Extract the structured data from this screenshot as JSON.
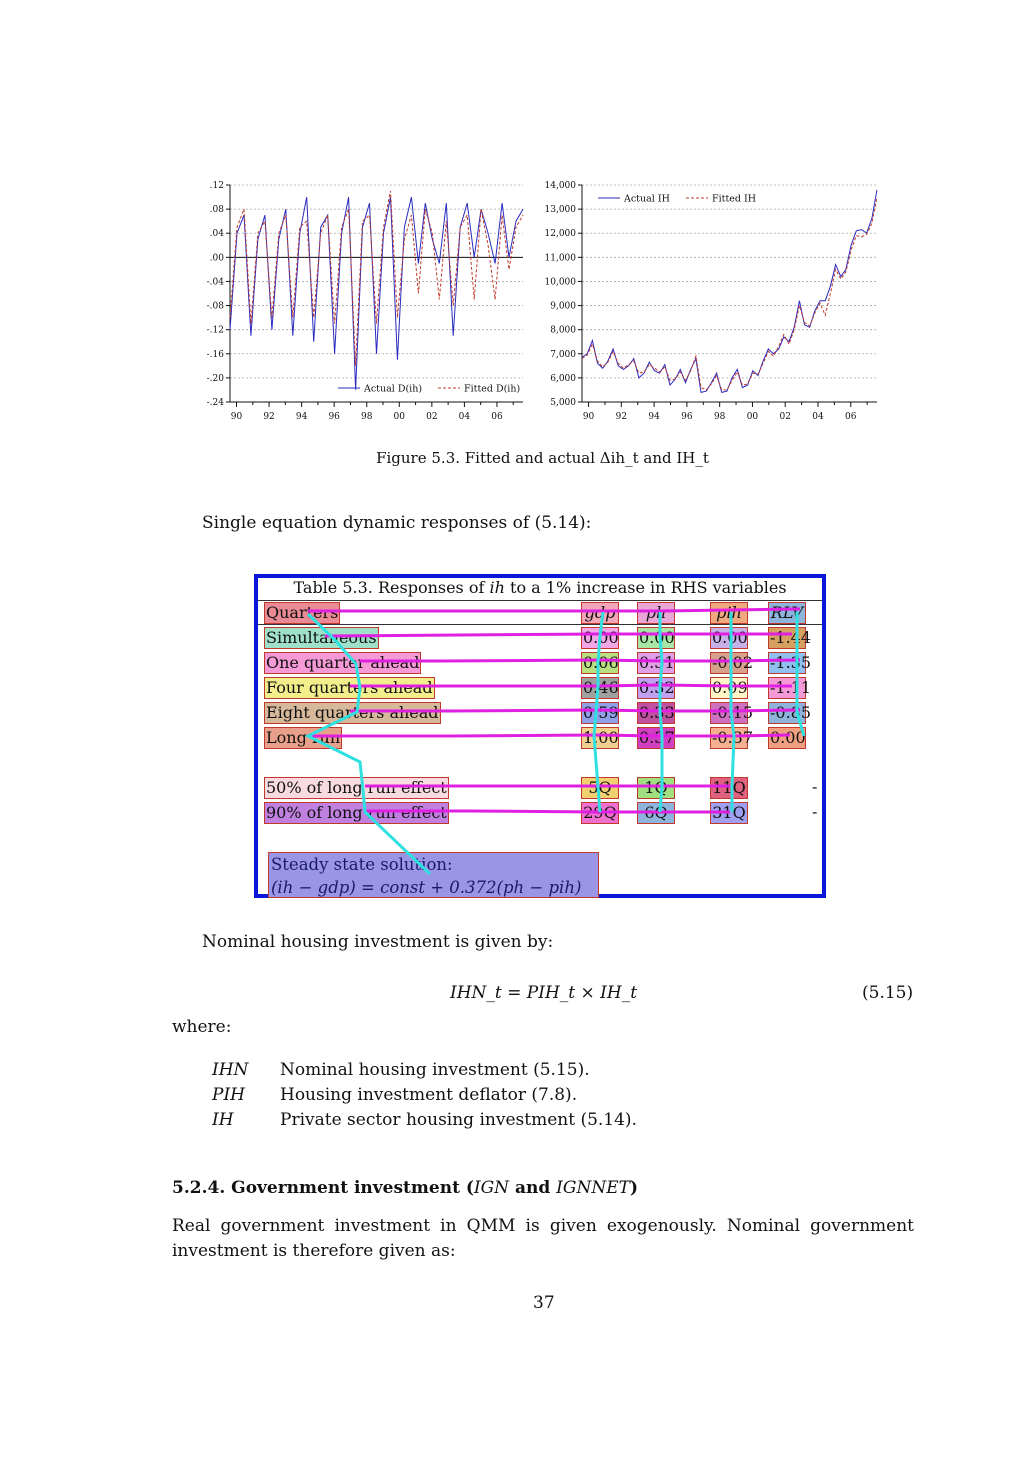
{
  "figure": {
    "left_chart": {
      "yticks": [
        ".12",
        ".08",
        ".04",
        ".00",
        "-.04",
        "-.08",
        "-.12",
        "-.16",
        "-.20",
        "-.24"
      ],
      "xticks": [
        "90",
        "92",
        "94",
        "96",
        "98",
        "00",
        "02",
        "04",
        "06"
      ],
      "legend": [
        "Actual D(ih)",
        "Fitted D(ih)"
      ]
    },
    "right_chart": {
      "yticks": [
        "14,000",
        "13,000",
        "12,000",
        "11,000",
        "10,000",
        "9,000",
        "8,000",
        "7,000",
        "6,000",
        "5,000"
      ],
      "xticks": [
        "90",
        "92",
        "94",
        "96",
        "98",
        "00",
        "02",
        "04",
        "06"
      ],
      "legend": [
        "Actual IH",
        "Fitted IH"
      ]
    },
    "caption": "Figure 5.3. Fitted and actual Δih_t and IH_t"
  },
  "chart_data": [
    {
      "type": "line",
      "ylim": [
        -0.24,
        0.12
      ],
      "x_range": [
        "1989Q1",
        "2006Q4"
      ],
      "grid": true,
      "legend_position": "bottom-right",
      "series": [
        {
          "name": "Actual D(ih)",
          "color": "#2b2bbf",
          "values": [
            -0.12,
            0.04,
            0.07,
            -0.13,
            0.03,
            0.07,
            -0.12,
            0.03,
            0.08,
            -0.13,
            0.04,
            0.1,
            -0.14,
            0.05,
            0.07,
            -0.16,
            0.04,
            0.1,
            -0.22,
            0.05,
            0.09,
            -0.16,
            0.04,
            0.1,
            -0.17,
            0.05,
            0.1,
            -0.01,
            0.09,
            0.03,
            -0.01,
            0.09,
            -0.13,
            0.05,
            0.09,
            0.0,
            0.08,
            0.04,
            -0.01,
            0.09,
            0.0,
            0.06,
            0.08
          ]
        },
        {
          "name": "Fitted D(ih)",
          "color": "#c0392b",
          "values": [
            -0.1,
            0.05,
            0.08,
            -0.11,
            0.04,
            0.06,
            -0.1,
            0.04,
            0.07,
            -0.1,
            0.05,
            0.06,
            -0.1,
            0.04,
            0.07,
            -0.11,
            0.05,
            0.08,
            -0.18,
            0.06,
            0.07,
            -0.11,
            0.05,
            0.11,
            -0.1,
            0.03,
            0.07,
            -0.06,
            0.08,
            0.04,
            -0.07,
            0.06,
            -0.08,
            0.05,
            0.07,
            -0.07,
            0.08,
            0.02,
            -0.07,
            0.07,
            -0.02,
            0.05,
            0.07
          ]
        }
      ]
    },
    {
      "type": "line",
      "ylim": [
        5000,
        14000
      ],
      "x_range": [
        "1989Q1",
        "2006Q4"
      ],
      "grid": true,
      "legend_position": "top-left",
      "series": [
        {
          "name": "Actual IH",
          "color": "#2b2bbf",
          "values": [
            6850,
            7000,
            7550,
            6600,
            6400,
            6700,
            7200,
            6500,
            6350,
            6500,
            6800,
            6000,
            6200,
            6650,
            6300,
            6200,
            6550,
            5700,
            5950,
            6350,
            5800,
            6350,
            6800,
            5400,
            5450,
            5800,
            6200,
            5400,
            5450,
            6000,
            6350,
            5600,
            5700,
            6300,
            6100,
            6700,
            7200,
            7000,
            7200,
            7700,
            7500,
            8100,
            9200,
            8200,
            8100,
            8800,
            9200,
            9200,
            9800,
            10700,
            10200,
            10500,
            11500,
            12100,
            12150,
            12000,
            12600,
            13800
          ]
        },
        {
          "name": "Fitted IH",
          "color": "#c0392b",
          "values": [
            6800,
            6950,
            7400,
            6700,
            6450,
            6650,
            7100,
            6600,
            6400,
            6550,
            6700,
            6200,
            6250,
            6550,
            6400,
            6250,
            6450,
            5900,
            5950,
            6250,
            5900,
            6300,
            6900,
            5600,
            5500,
            5750,
            6100,
            5500,
            5500,
            5900,
            6250,
            5700,
            5750,
            6200,
            6150,
            6600,
            7100,
            6900,
            7300,
            7800,
            7400,
            8000,
            9000,
            8300,
            8150,
            8700,
            9100,
            8600,
            9500,
            10500,
            10100,
            10400,
            11300,
            11900,
            11850,
            11950,
            12400,
            13500
          ]
        }
      ]
    }
  ],
  "intro": "Single equation dynamic responses of (5.14):",
  "table": {
    "title_pre": "Table 5.3. Responses of ",
    "title_var": "ih",
    "title_post": " to a 1% increase in RHS variables",
    "headers": [
      "Quarters",
      "gdp",
      "ph",
      "pih",
      "RLV"
    ],
    "rows": [
      {
        "label": "Simultaneous",
        "values": [
          "0.00",
          "0.00",
          "0.00",
          "-1.44"
        ]
      },
      {
        "label": "One quarter ahead",
        "values": [
          "0.06",
          "0.31",
          "-0.02",
          "-1.35"
        ]
      },
      {
        "label": "Four quarters ahead",
        "values": [
          "0.46",
          "0.32",
          "0.09",
          "-1.11"
        ]
      },
      {
        "label": "Eight quarters ahead",
        "values": [
          "0.59",
          "0.33",
          "-0.15",
          "-0.85"
        ]
      },
      {
        "label": "Long run",
        "values": [
          "1.00",
          "0.37",
          "-0.37",
          "0.00"
        ]
      }
    ],
    "effects": [
      {
        "label": "50% of long run effect",
        "values": [
          "5Q",
          "1Q",
          "11Q",
          "-"
        ]
      },
      {
        "label": "90% of long run effect",
        "values": [
          "29Q",
          "6Q",
          "31Q",
          "-"
        ]
      }
    ],
    "steady_title": "Steady state solution:",
    "steady_eq": "(ih − gdp) = const + 0.372(ph − pih)"
  },
  "nominal_intro": "Nominal housing investment is given by:",
  "equation": {
    "text": "IHN_t = PIH_t × IH_t",
    "number": "(5.15)"
  },
  "where": "where:",
  "definitions": [
    {
      "symbol": "IHN",
      "text": "Nominal housing investment (5.15)."
    },
    {
      "symbol": "PIH",
      "text": "Housing investment deflator (7.8)."
    },
    {
      "symbol": "IH",
      "text": "Private sector housing investment (5.14)."
    }
  ],
  "section": {
    "number": "5.2.4.",
    "title_pre": "Government investment (",
    "sym1": "IGN",
    "and": " and ",
    "sym2": "IGNNET",
    "title_post": ")"
  },
  "body": [
    "Real government investment in QMM is given exogenously.  Nominal government",
    "investment is therefore given as:"
  ],
  "page_number": "37",
  "colors": {
    "frame": "#0a16d8",
    "actual": "#2b2bbf",
    "fitted": "#c0392b",
    "magenta_link": "#e020e0",
    "cyan_link": "#30e0e0"
  }
}
